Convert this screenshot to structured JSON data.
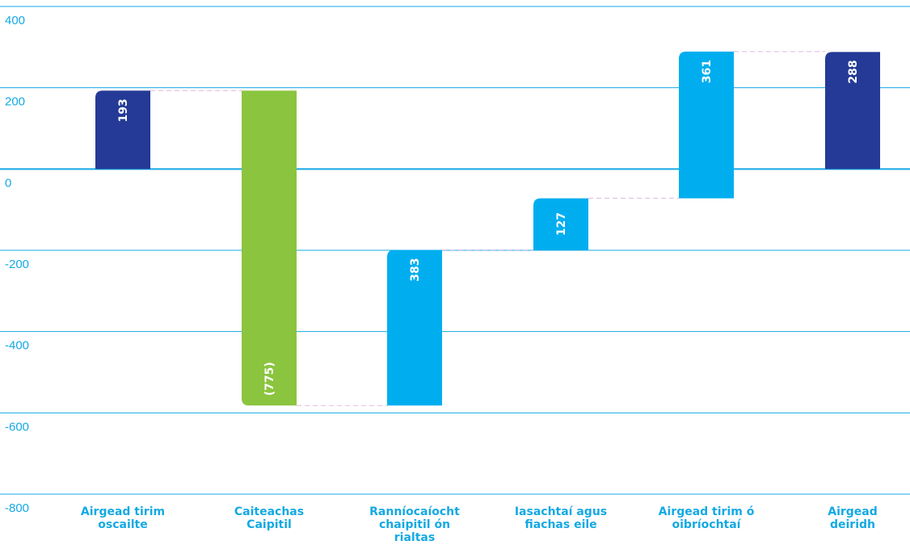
{
  "chart_data": {
    "type": "bar",
    "variant": "waterfall",
    "y_ticks": [
      "400",
      "200",
      "0",
      "-200",
      "-400",
      "-600",
      "-800"
    ],
    "ylim": [
      -800,
      400
    ],
    "grid": true,
    "categories": [
      [
        "Airgead tirim",
        "oscailte"
      ],
      [
        "Caiteachas",
        "Caipitil"
      ],
      [
        "Ranníocaíocht",
        "chaipitil ón",
        "rialtas"
      ],
      [
        "Iasachtaí agus",
        "fiachas eile"
      ],
      [
        "Airgead tirim ó",
        "oibríochtaí"
      ],
      [
        "Airgead",
        "deiridh"
      ]
    ],
    "bars": [
      {
        "start": 0,
        "end": 193,
        "label": "193",
        "color": "#243a96",
        "label_pos": "top"
      },
      {
        "start": 193,
        "end": -582,
        "label": "(775)",
        "color": "#8bc43f",
        "label_pos": "bottom"
      },
      {
        "start": -582,
        "end": -199,
        "label": "383",
        "color": "#00aeef",
        "label_pos": "top"
      },
      {
        "start": -199,
        "end": -72,
        "label": "127",
        "color": "#00aeef",
        "label_pos": "middle"
      },
      {
        "start": -72,
        "end": 289,
        "label": "361",
        "color": "#00aeef",
        "label_pos": "top"
      },
      {
        "start": 0,
        "end": 288,
        "label": "288",
        "color": "#243a96",
        "label_pos": "top"
      }
    ],
    "colors": {
      "gridline": "#14a9e3",
      "tick_text": "#14a9e3",
      "category_text": "#14a9e3",
      "connector": "#e8c6e6"
    }
  }
}
